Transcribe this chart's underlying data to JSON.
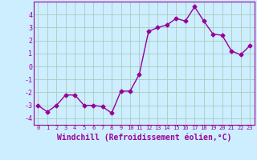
{
  "x": [
    0,
    1,
    2,
    3,
    4,
    5,
    6,
    7,
    8,
    9,
    10,
    11,
    12,
    13,
    14,
    15,
    16,
    17,
    18,
    19,
    20,
    21,
    22,
    23
  ],
  "y": [
    -3.0,
    -3.5,
    -3.0,
    -2.2,
    -2.2,
    -3.0,
    -3.0,
    -3.1,
    -3.6,
    -1.9,
    -1.9,
    -0.6,
    2.7,
    3.0,
    3.2,
    3.7,
    3.5,
    4.6,
    3.5,
    2.5,
    2.4,
    1.2,
    0.9,
    1.6
  ],
  "line_color": "#990099",
  "marker": "D",
  "marker_size": 2.5,
  "linewidth": 1.0,
  "bg_color": "#cceeff",
  "grid_color": "#aaccbb",
  "xlabel": "Windchill (Refroidissement éolien,°C)",
  "xlabel_fontsize": 7,
  "xtick_labels": [
    "0",
    "1",
    "2",
    "3",
    "4",
    "5",
    "6",
    "7",
    "8",
    "9",
    "10",
    "11",
    "12",
    "13",
    "14",
    "15",
    "16",
    "17",
    "18",
    "19",
    "20",
    "21",
    "22",
    "23"
  ],
  "yticks": [
    -4,
    -3,
    -2,
    -1,
    0,
    1,
    2,
    3,
    4
  ],
  "ylim": [
    -4.5,
    5.0
  ],
  "xlim": [
    -0.5,
    23.5
  ]
}
